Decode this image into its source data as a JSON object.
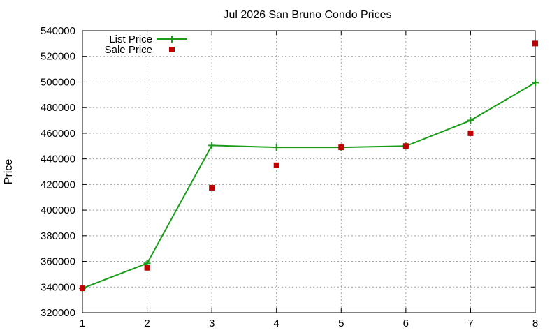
{
  "chart_data": {
    "type": "line",
    "title": "Jul 2026 San Bruno Condo Prices",
    "xlabel": "",
    "ylabel": "Price",
    "x": [
      1,
      2,
      3,
      4,
      5,
      6,
      7,
      8
    ],
    "xlim": [
      1,
      8
    ],
    "ylim": [
      320000,
      540000
    ],
    "x_ticks": [
      "1",
      "2",
      "3",
      "4",
      "5",
      "6",
      "7",
      "8"
    ],
    "y_ticks": [
      "320000",
      "340000",
      "360000",
      "380000",
      "400000",
      "420000",
      "440000",
      "460000",
      "480000",
      "500000",
      "520000",
      "540000"
    ],
    "grid": true,
    "legend_position": "top-left",
    "series": [
      {
        "name": "List Price",
        "style": "line-with-plus-markers",
        "color": "#1a9c1a",
        "values": [
          339000,
          358500,
          450500,
          449000,
          449000,
          450000,
          470000,
          499500
        ]
      },
      {
        "name": "Sale Price",
        "style": "square-markers",
        "color": "#c00000",
        "values": [
          339000,
          355000,
          417500,
          435000,
          449000,
          450000,
          460000,
          530000
        ]
      }
    ]
  }
}
